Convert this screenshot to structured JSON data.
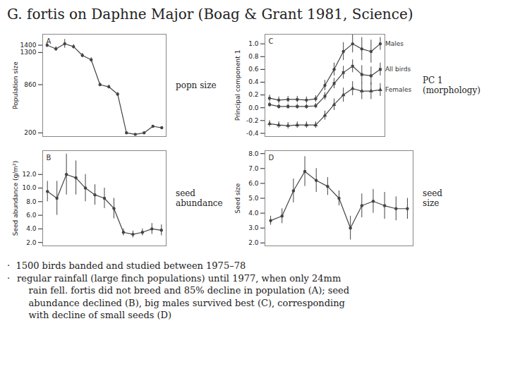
{
  "title": "G. fortis on Daphne Major (Boag & Grant 1981, Science)",
  "annotations": [
    "·  1500 birds banded and studied between 1975–78",
    "·",
    "regular rainfall (large finch populations) until 1977, when only 24mm\n    rain fell. fortis did not breed and 85% decline in population (A); seed\n    abundance declined (B), big males survived best (C), corresponding\n    with decline of small seeds (D)"
  ],
  "chart_data": [
    {
      "type": "line",
      "panel_label": "A",
      "annotation": "popn size",
      "ylabel": "Population size",
      "x": [
        0,
        1,
        2,
        3,
        4,
        5,
        6,
        7,
        8,
        9,
        10,
        11,
        12,
        13
      ],
      "values": [
        1400,
        1350,
        1420,
        1380,
        1260,
        1200,
        860,
        830,
        730,
        200,
        180,
        200,
        290,
        270
      ],
      "yerr": [
        30,
        30,
        60,
        30,
        30,
        30,
        25,
        25,
        25,
        0,
        0,
        0,
        0,
        0
      ],
      "color": "#444444",
      "marker": "circle",
      "xlim": [
        -0.5,
        13.5
      ],
      "ylim": [
        150,
        1550
      ],
      "yticks": [
        200,
        860,
        1300,
        1400
      ],
      "tick_labels": "y",
      "grid": false
    },
    {
      "type": "line",
      "panel_label": "B",
      "annotation": "seed\nabundance",
      "ylabel": "Seed abundance (g/m²)",
      "x": [
        0,
        1,
        2,
        3,
        4,
        5,
        6,
        7,
        8,
        9,
        10,
        11,
        12
      ],
      "values": [
        9.5,
        8.5,
        12.0,
        11.5,
        10.0,
        9.0,
        8.5,
        7.0,
        3.5,
        3.2,
        3.5,
        4.0,
        3.8
      ],
      "yerr": [
        1.5,
        2.5,
        3.0,
        2.5,
        2.0,
        1.5,
        1.5,
        1.5,
        0.5,
        0.5,
        0.5,
        0.8,
        0.8
      ],
      "color": "#444444",
      "marker": "circle",
      "xlim": [
        -0.5,
        12.5
      ],
      "ylim": [
        1.5,
        15.5
      ],
      "yticks": [
        {
          "value": 2.0,
          "label": "2.0"
        },
        {
          "value": 4.0,
          "label": "4.0"
        },
        {
          "value": 6.0,
          "label": "6.0"
        },
        {
          "value": 8.0,
          "label": "8.0"
        },
        {
          "value": 10.0,
          "label": "10.0"
        },
        {
          "value": 12.0,
          "label": "12.0"
        }
      ],
      "tick_labels": "y",
      "grid": false
    },
    {
      "type": "line",
      "panel_label": "C",
      "annotation": "PC 1 (morphology)",
      "ylabel": "Principal component 1",
      "x": [
        0,
        1,
        2,
        3,
        4,
        5,
        6,
        7,
        8,
        9,
        10,
        11,
        12
      ],
      "series": [
        {
          "name": "Males",
          "marker": "circle",
          "values": [
            0.15,
            0.12,
            0.13,
            0.13,
            0.12,
            0.14,
            0.35,
            0.6,
            0.88,
            1.0,
            0.92,
            0.88,
            1.0
          ],
          "yerr": [
            0.05,
            0.05,
            0.05,
            0.05,
            0.05,
            0.05,
            0.08,
            0.1,
            0.14,
            0.14,
            0.18,
            0.18,
            0.1
          ]
        },
        {
          "name": "All birds",
          "marker": "square",
          "values": [
            0.05,
            0.02,
            0.02,
            0.02,
            0.02,
            0.03,
            0.18,
            0.38,
            0.55,
            0.65,
            0.52,
            0.5,
            0.6
          ],
          "yerr": [
            0.04,
            0.04,
            0.04,
            0.04,
            0.04,
            0.04,
            0.06,
            0.08,
            0.1,
            0.1,
            0.14,
            0.14,
            0.1
          ]
        },
        {
          "name": "Females",
          "marker": "triangle",
          "values": [
            -0.25,
            -0.27,
            -0.28,
            -0.27,
            -0.27,
            -0.27,
            -0.12,
            0.05,
            0.2,
            0.3,
            0.26,
            0.26,
            0.28
          ],
          "yerr": [
            0.05,
            0.05,
            0.05,
            0.05,
            0.05,
            0.05,
            0.07,
            0.09,
            0.11,
            0.11,
            0.13,
            0.13,
            0.1
          ]
        }
      ],
      "color": "#444444",
      "xlim": [
        -0.5,
        12.5
      ],
      "ylim": [
        -0.45,
        1.15
      ],
      "yticks": [
        -0.4,
        -0.2,
        {
          "value": 0.0,
          "label": "0.0"
        },
        0.2,
        0.4,
        0.6,
        0.8,
        {
          "value": 1.0,
          "label": "1.0"
        }
      ],
      "tick_labels": "y",
      "grid": false
    },
    {
      "type": "line",
      "panel_label": "D",
      "annotation": "seed\nsize",
      "ylabel": "Seed size",
      "x": [
        0,
        1,
        2,
        3,
        4,
        5,
        6,
        7,
        8,
        9,
        10,
        11,
        12
      ],
      "values": [
        3.5,
        3.8,
        5.5,
        6.8,
        6.2,
        5.8,
        5.0,
        3.0,
        4.5,
        4.8,
        4.5,
        4.3,
        4.3
      ],
      "yerr": [
        0.3,
        0.5,
        0.8,
        1.0,
        0.8,
        0.6,
        0.5,
        0.8,
        0.8,
        0.8,
        0.9,
        0.8,
        0.7
      ],
      "color": "#444444",
      "marker": "circle",
      "xlim": [
        -0.5,
        12.5
      ],
      "ylim": [
        1.8,
        8.2
      ],
      "yticks": [
        {
          "value": 2.0,
          "label": "2.0"
        },
        {
          "value": 3.0,
          "label": "3.0"
        },
        {
          "value": 4.0,
          "label": "4.0"
        },
        {
          "value": 5.0,
          "label": "5.0"
        },
        {
          "value": 6.0,
          "label": "6.0"
        },
        {
          "value": 7.0,
          "label": "7.0"
        },
        {
          "value": 8.0,
          "label": "8.0"
        }
      ],
      "tick_labels": "y",
      "grid": false
    }
  ]
}
